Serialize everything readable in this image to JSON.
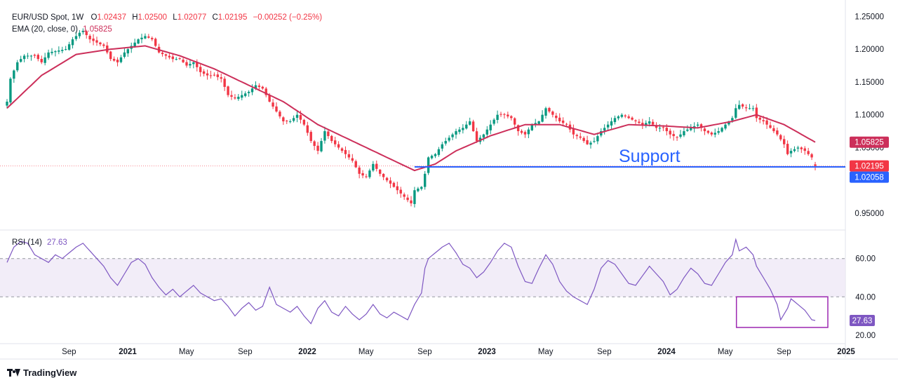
{
  "header": {
    "symbol": "EUR/USD Spot, 1W",
    "o_label": "O",
    "o": "1.02437",
    "h_label": "H",
    "h": "1.02500",
    "l_label": "L",
    "l": "1.02077",
    "c_label": "C",
    "c": "1.02195",
    "change": "−0.00252 (−0.25%)",
    "ema_label": "EMA (20, close, 0)",
    "ema_value": "1.05825"
  },
  "rsi_header": {
    "label": "RSI (14)",
    "value": "27.63"
  },
  "annotation": {
    "support_text": "Support"
  },
  "brand": {
    "name": "TradingView"
  },
  "colors": {
    "up": "#089981",
    "down": "#f23645",
    "ema": "#cc2f5a",
    "support": "#2962ff",
    "rsi": "#7e57c2",
    "rsi_band": "#ede7f6",
    "rsi_box": "#9c27b0"
  },
  "chart_data": [
    {
      "type": "candlestick",
      "timeframe": "1W",
      "x_ticks": [
        "Sep",
        "2021",
        "May",
        "Sep",
        "2022",
        "May",
        "Sep",
        "2023",
        "May",
        "Sep",
        "2024",
        "May",
        "Sep",
        "2025"
      ],
      "y_ticks": [
        "1.25000",
        "1.20000",
        "1.15000",
        "1.10000",
        "1.05000",
        "0.95000"
      ],
      "ylim": [
        0.935,
        1.26
      ],
      "price_labels": [
        {
          "value": 1.05825,
          "label": "1.05825",
          "color": "#cc2f5a"
        },
        {
          "value": 1.02195,
          "label": "1.02195",
          "color": "#f23645"
        },
        {
          "value": 1.02058,
          "label": "1.02058",
          "color": "#2962ff"
        }
      ],
      "support_level": 1.02058,
      "anchors": [
        [
          0,
          1.12
        ],
        [
          1,
          1.155
        ],
        [
          3,
          1.18
        ],
        [
          5,
          1.19
        ],
        [
          8,
          1.19
        ],
        [
          10,
          1.18
        ],
        [
          12,
          1.195
        ],
        [
          15,
          1.198
        ],
        [
          17,
          1.2
        ],
        [
          19,
          1.215
        ],
        [
          21,
          1.225
        ],
        [
          22,
          1.228
        ],
        [
          24,
          1.215
        ],
        [
          26,
          1.21
        ],
        [
          28,
          1.205
        ],
        [
          30,
          1.185
        ],
        [
          32,
          1.18
        ],
        [
          34,
          1.195
        ],
        [
          36,
          1.205
        ],
        [
          38,
          1.215
        ],
        [
          40,
          1.22
        ],
        [
          42,
          1.215
        ],
        [
          44,
          1.195
        ],
        [
          46,
          1.19
        ],
        [
          48,
          1.185
        ],
        [
          50,
          1.185
        ],
        [
          52,
          1.175
        ],
        [
          54,
          1.18
        ],
        [
          56,
          1.165
        ],
        [
          58,
          1.16
        ],
        [
          60,
          1.16
        ],
        [
          62,
          1.155
        ],
        [
          64,
          1.13
        ],
        [
          66,
          1.125
        ],
        [
          68,
          1.13
        ],
        [
          70,
          1.135
        ],
        [
          72,
          1.145
        ],
        [
          74,
          1.14
        ],
        [
          76,
          1.12
        ],
        [
          78,
          1.105
        ],
        [
          80,
          1.09
        ],
        [
          82,
          1.09
        ],
        [
          84,
          1.1
        ],
        [
          86,
          1.085
        ],
        [
          88,
          1.06
        ],
        [
          90,
          1.045
        ],
        [
          92,
          1.075
        ],
        [
          94,
          1.06
        ],
        [
          96,
          1.05
        ],
        [
          98,
          1.04
        ],
        [
          100,
          1.03
        ],
        [
          102,
          1.01
        ],
        [
          104,
          1.005
        ],
        [
          106,
          1.025
        ],
        [
          108,
          1.01
        ],
        [
          110,
          1.0
        ],
        [
          112,
          0.99
        ],
        [
          114,
          0.98
        ],
        [
          116,
          0.97
        ],
        [
          117,
          0.965
        ],
        [
          118,
          0.985
        ],
        [
          120,
          0.99
        ],
        [
          121,
          1.01
        ],
        [
          122,
          1.035
        ],
        [
          124,
          1.04
        ],
        [
          126,
          1.055
        ],
        [
          128,
          1.065
        ],
        [
          130,
          1.075
        ],
        [
          132,
          1.08
        ],
        [
          134,
          1.09
        ],
        [
          136,
          1.06
        ],
        [
          138,
          1.07
        ],
        [
          140,
          1.085
        ],
        [
          142,
          1.1
        ],
        [
          144,
          1.1
        ],
        [
          146,
          1.095
        ],
        [
          148,
          1.075
        ],
        [
          150,
          1.07
        ],
        [
          152,
          1.085
        ],
        [
          154,
          1.09
        ],
        [
          156,
          1.11
        ],
        [
          158,
          1.1
        ],
        [
          160,
          1.09
        ],
        [
          162,
          1.085
        ],
        [
          164,
          1.07
        ],
        [
          166,
          1.065
        ],
        [
          168,
          1.055
        ],
        [
          170,
          1.06
        ],
        [
          172,
          1.075
        ],
        [
          174,
          1.085
        ],
        [
          176,
          1.095
        ],
        [
          178,
          1.1
        ],
        [
          180,
          1.095
        ],
        [
          182,
          1.09
        ],
        [
          184,
          1.085
        ],
        [
          186,
          1.09
        ],
        [
          188,
          1.08
        ],
        [
          190,
          1.08
        ],
        [
          192,
          1.07
        ],
        [
          194,
          1.065
        ],
        [
          196,
          1.075
        ],
        [
          198,
          1.08
        ],
        [
          200,
          1.085
        ],
        [
          202,
          1.075
        ],
        [
          204,
          1.07
        ],
        [
          206,
          1.075
        ],
        [
          208,
          1.085
        ],
        [
          210,
          1.095
        ],
        [
          211,
          1.11
        ],
        [
          212,
          1.115
        ],
        [
          214,
          1.11
        ],
        [
          216,
          1.11
        ],
        [
          217,
          1.095
        ],
        [
          219,
          1.09
        ],
        [
          221,
          1.08
        ],
        [
          223,
          1.07
        ],
        [
          225,
          1.055
        ],
        [
          226,
          1.04
        ],
        [
          227,
          1.045
        ],
        [
          229,
          1.05
        ],
        [
          231,
          1.045
        ],
        [
          233,
          1.035
        ],
        [
          234,
          1.02195
        ]
      ],
      "ema_anchors": [
        [
          0,
          1.11
        ],
        [
          10,
          1.16
        ],
        [
          20,
          1.192
        ],
        [
          30,
          1.2
        ],
        [
          40,
          1.205
        ],
        [
          50,
          1.19
        ],
        [
          60,
          1.17
        ],
        [
          70,
          1.145
        ],
        [
          80,
          1.12
        ],
        [
          90,
          1.085
        ],
        [
          100,
          1.06
        ],
        [
          110,
          1.035
        ],
        [
          118,
          1.015
        ],
        [
          124,
          1.025
        ],
        [
          130,
          1.045
        ],
        [
          140,
          1.068
        ],
        [
          150,
          1.085
        ],
        [
          160,
          1.085
        ],
        [
          170,
          1.07
        ],
        [
          180,
          1.085
        ],
        [
          190,
          1.083
        ],
        [
          200,
          1.08
        ],
        [
          210,
          1.09
        ],
        [
          217,
          1.1
        ],
        [
          225,
          1.085
        ],
        [
          234,
          1.05825
        ]
      ]
    },
    {
      "type": "line",
      "series": [
        {
          "name": "RSI (14)",
          "last": 27.63
        }
      ],
      "y_ticks": [
        "60.00",
        "40.00",
        "20.00"
      ],
      "ylim": [
        17,
        72
      ],
      "bands": [
        40,
        60
      ],
      "last_label": "27.63",
      "highlight_box": {
        "from": 212,
        "to": 234,
        "low": 24,
        "high": 40
      },
      "anchors": [
        [
          0,
          58
        ],
        [
          2,
          66
        ],
        [
          4,
          69
        ],
        [
          6,
          68
        ],
        [
          8,
          62
        ],
        [
          10,
          60
        ],
        [
          12,
          58
        ],
        [
          14,
          62
        ],
        [
          16,
          60
        ],
        [
          18,
          63
        ],
        [
          20,
          66
        ],
        [
          22,
          68
        ],
        [
          24,
          64
        ],
        [
          26,
          60
        ],
        [
          28,
          56
        ],
        [
          30,
          50
        ],
        [
          32,
          46
        ],
        [
          34,
          52
        ],
        [
          36,
          58
        ],
        [
          38,
          60
        ],
        [
          40,
          57
        ],
        [
          42,
          50
        ],
        [
          44,
          45
        ],
        [
          46,
          41
        ],
        [
          48,
          44
        ],
        [
          50,
          40
        ],
        [
          52,
          43
        ],
        [
          54,
          46
        ],
        [
          56,
          42
        ],
        [
          58,
          40
        ],
        [
          60,
          38
        ],
        [
          62,
          39
        ],
        [
          64,
          35
        ],
        [
          66,
          30
        ],
        [
          68,
          34
        ],
        [
          70,
          37
        ],
        [
          72,
          33
        ],
        [
          74,
          35
        ],
        [
          76,
          45
        ],
        [
          78,
          36
        ],
        [
          80,
          34
        ],
        [
          82,
          32
        ],
        [
          84,
          35
        ],
        [
          86,
          30
        ],
        [
          88,
          26
        ],
        [
          90,
          34
        ],
        [
          92,
          38
        ],
        [
          94,
          32
        ],
        [
          96,
          30
        ],
        [
          98,
          35
        ],
        [
          100,
          31
        ],
        [
          102,
          28
        ],
        [
          104,
          31
        ],
        [
          106,
          36
        ],
        [
          108,
          31
        ],
        [
          110,
          29
        ],
        [
          112,
          32
        ],
        [
          114,
          30
        ],
        [
          116,
          28
        ],
        [
          118,
          36
        ],
        [
          120,
          42
        ],
        [
          121,
          55
        ],
        [
          122,
          60
        ],
        [
          124,
          63
        ],
        [
          126,
          66
        ],
        [
          128,
          68
        ],
        [
          130,
          63
        ],
        [
          132,
          57
        ],
        [
          134,
          55
        ],
        [
          136,
          50
        ],
        [
          138,
          53
        ],
        [
          140,
          58
        ],
        [
          142,
          64
        ],
        [
          144,
          68
        ],
        [
          146,
          66
        ],
        [
          148,
          56
        ],
        [
          150,
          48
        ],
        [
          152,
          47
        ],
        [
          154,
          55
        ],
        [
          156,
          62
        ],
        [
          158,
          57
        ],
        [
          160,
          48
        ],
        [
          162,
          43
        ],
        [
          164,
          40
        ],
        [
          166,
          38
        ],
        [
          168,
          36
        ],
        [
          170,
          44
        ],
        [
          172,
          55
        ],
        [
          174,
          59
        ],
        [
          176,
          57
        ],
        [
          178,
          52
        ],
        [
          180,
          47
        ],
        [
          182,
          46
        ],
        [
          184,
          51
        ],
        [
          186,
          56
        ],
        [
          188,
          52
        ],
        [
          190,
          48
        ],
        [
          192,
          41
        ],
        [
          194,
          44
        ],
        [
          196,
          50
        ],
        [
          198,
          55
        ],
        [
          200,
          52
        ],
        [
          202,
          47
        ],
        [
          204,
          46
        ],
        [
          206,
          52
        ],
        [
          208,
          58
        ],
        [
          210,
          62
        ],
        [
          211,
          70
        ],
        [
          212,
          64
        ],
        [
          214,
          66
        ],
        [
          216,
          62
        ],
        [
          217,
          56
        ],
        [
          219,
          50
        ],
        [
          221,
          44
        ],
        [
          223,
          36
        ],
        [
          224,
          28
        ],
        [
          226,
          34
        ],
        [
          227,
          39
        ],
        [
          229,
          36
        ],
        [
          231,
          33
        ],
        [
          233,
          28
        ],
        [
          234,
          27.63
        ]
      ]
    }
  ]
}
